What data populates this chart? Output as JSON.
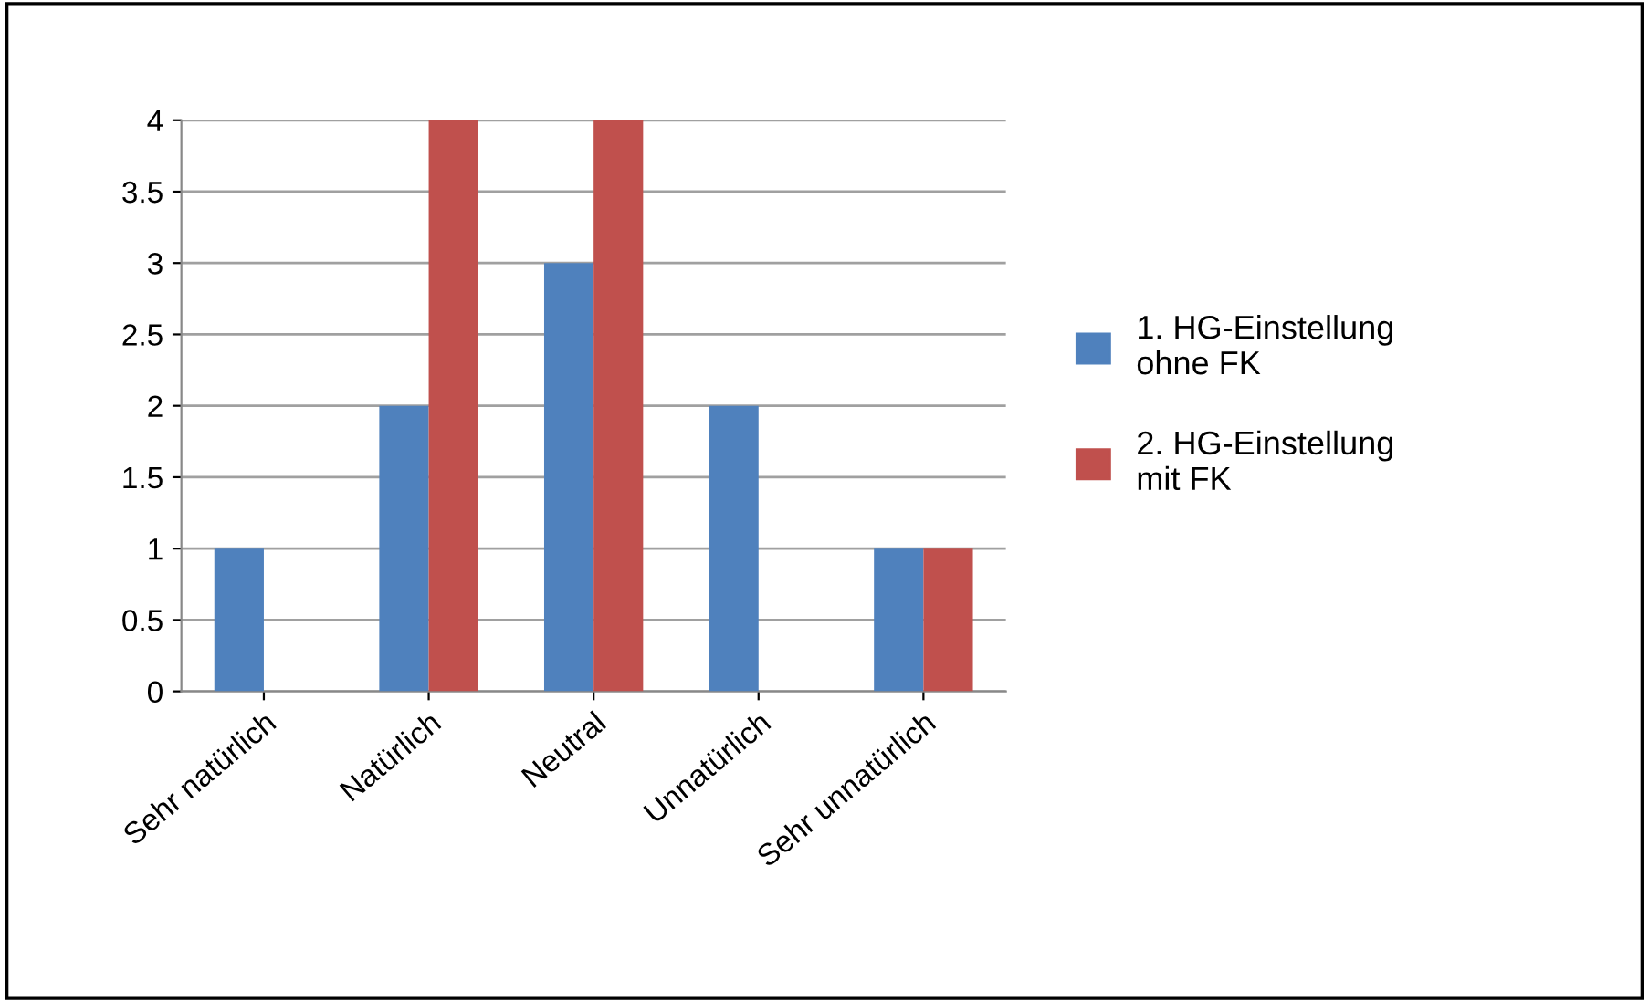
{
  "chart_data": {
    "type": "bar",
    "categories": [
      "Sehr natürlich",
      "Natürlich",
      "Neutral",
      "Unnatürlich",
      "Sehr unnatürlich"
    ],
    "series": [
      {
        "name": "1. HG-Einstellung\nohne FK",
        "color": "#4f81bd",
        "values": [
          1,
          2,
          3,
          2,
          1
        ]
      },
      {
        "name": "2. HG-Einstellung\nmit FK",
        "color": "#c0504d",
        "values": [
          0,
          4,
          4,
          0,
          1
        ]
      }
    ],
    "ylim": [
      0,
      4
    ],
    "yticks": [
      0,
      0.5,
      1,
      1.5,
      2,
      2.5,
      3,
      3.5,
      4
    ],
    "grid": "y",
    "legend": "right"
  }
}
